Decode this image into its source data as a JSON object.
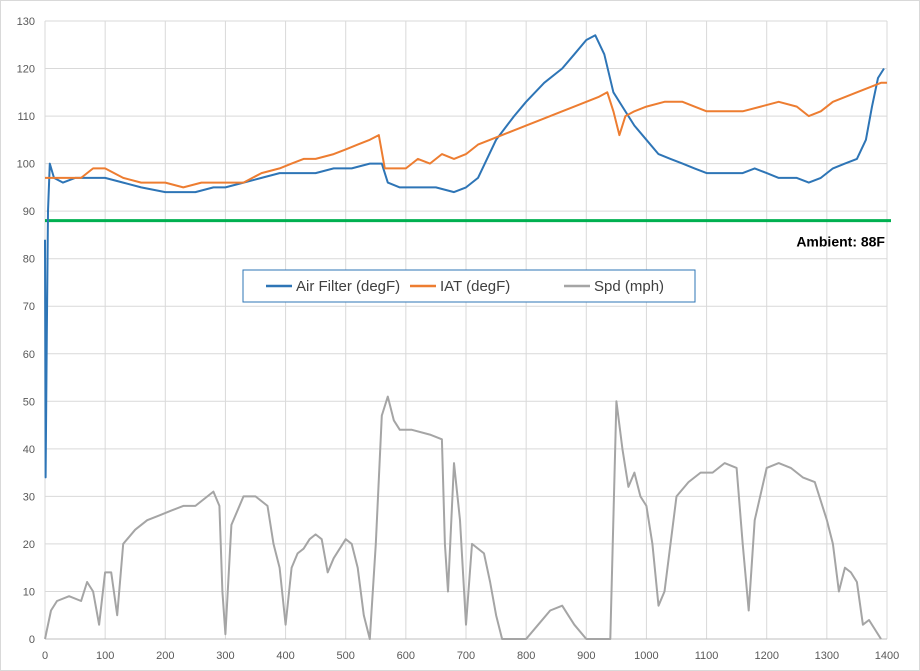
{
  "chart_data": {
    "type": "line",
    "title": "",
    "xlabel": "",
    "ylabel": "",
    "xlim": [
      0,
      1400
    ],
    "ylim": [
      0,
      130
    ],
    "x_ticks": [
      0,
      100,
      200,
      300,
      400,
      500,
      600,
      700,
      800,
      900,
      1000,
      1100,
      1200,
      1300,
      1400
    ],
    "y_ticks": [
      0,
      10,
      20,
      30,
      40,
      50,
      60,
      70,
      80,
      90,
      100,
      110,
      120,
      130
    ],
    "grid": true,
    "legend_position": "center",
    "reference_line": {
      "value": 88,
      "color": "#00b050",
      "label": "Ambient: 88F"
    },
    "series": [
      {
        "name": "Air Filter (degF)",
        "color": "#2e75b6",
        "points": [
          [
            0,
            84
          ],
          [
            1,
            34
          ],
          [
            3,
            64
          ],
          [
            5,
            90
          ],
          [
            8,
            100
          ],
          [
            15,
            97
          ],
          [
            30,
            96
          ],
          [
            50,
            97
          ],
          [
            80,
            97
          ],
          [
            100,
            97
          ],
          [
            130,
            96
          ],
          [
            160,
            95
          ],
          [
            200,
            94
          ],
          [
            250,
            94
          ],
          [
            280,
            95
          ],
          [
            300,
            95
          ],
          [
            330,
            96
          ],
          [
            360,
            97
          ],
          [
            390,
            98
          ],
          [
            420,
            98
          ],
          [
            450,
            98
          ],
          [
            480,
            99
          ],
          [
            510,
            99
          ],
          [
            540,
            100
          ],
          [
            560,
            100
          ],
          [
            570,
            96
          ],
          [
            590,
            95
          ],
          [
            620,
            95
          ],
          [
            650,
            95
          ],
          [
            680,
            94
          ],
          [
            700,
            95
          ],
          [
            720,
            97
          ],
          [
            750,
            105
          ],
          [
            780,
            110
          ],
          [
            800,
            113
          ],
          [
            830,
            117
          ],
          [
            860,
            120
          ],
          [
            880,
            123
          ],
          [
            900,
            126
          ],
          [
            915,
            127
          ],
          [
            930,
            123
          ],
          [
            945,
            115
          ],
          [
            960,
            112
          ],
          [
            980,
            108
          ],
          [
            1000,
            105
          ],
          [
            1020,
            102
          ],
          [
            1040,
            101
          ],
          [
            1060,
            100
          ],
          [
            1080,
            99
          ],
          [
            1100,
            98
          ],
          [
            1120,
            98
          ],
          [
            1140,
            98
          ],
          [
            1160,
            98
          ],
          [
            1180,
            99
          ],
          [
            1200,
            98
          ],
          [
            1220,
            97
          ],
          [
            1250,
            97
          ],
          [
            1270,
            96
          ],
          [
            1290,
            97
          ],
          [
            1310,
            99
          ],
          [
            1330,
            100
          ],
          [
            1350,
            101
          ],
          [
            1365,
            105
          ],
          [
            1375,
            112
          ],
          [
            1385,
            118
          ],
          [
            1395,
            120
          ]
        ]
      },
      {
        "name": "IAT (degF)",
        "color": "#ed7d31",
        "points": [
          [
            0,
            97
          ],
          [
            20,
            97
          ],
          [
            40,
            97
          ],
          [
            60,
            97
          ],
          [
            80,
            99
          ],
          [
            100,
            99
          ],
          [
            130,
            97
          ],
          [
            160,
            96
          ],
          [
            200,
            96
          ],
          [
            230,
            95
          ],
          [
            260,
            96
          ],
          [
            300,
            96
          ],
          [
            330,
            96
          ],
          [
            360,
            98
          ],
          [
            390,
            99
          ],
          [
            410,
            100
          ],
          [
            430,
            101
          ],
          [
            450,
            101
          ],
          [
            480,
            102
          ],
          [
            500,
            103
          ],
          [
            520,
            104
          ],
          [
            540,
            105
          ],
          [
            555,
            106
          ],
          [
            565,
            99
          ],
          [
            580,
            99
          ],
          [
            600,
            99
          ],
          [
            620,
            101
          ],
          [
            640,
            100
          ],
          [
            660,
            102
          ],
          [
            680,
            101
          ],
          [
            700,
            102
          ],
          [
            720,
            104
          ],
          [
            740,
            105
          ],
          [
            760,
            106
          ],
          [
            780,
            107
          ],
          [
            800,
            108
          ],
          [
            820,
            109
          ],
          [
            840,
            110
          ],
          [
            860,
            111
          ],
          [
            880,
            112
          ],
          [
            900,
            113
          ],
          [
            920,
            114
          ],
          [
            935,
            115
          ],
          [
            945,
            111
          ],
          [
            955,
            106
          ],
          [
            965,
            110
          ],
          [
            980,
            111
          ],
          [
            1000,
            112
          ],
          [
            1030,
            113
          ],
          [
            1060,
            113
          ],
          [
            1080,
            112
          ],
          [
            1100,
            111
          ],
          [
            1130,
            111
          ],
          [
            1160,
            111
          ],
          [
            1190,
            112
          ],
          [
            1220,
            113
          ],
          [
            1250,
            112
          ],
          [
            1270,
            110
          ],
          [
            1290,
            111
          ],
          [
            1310,
            113
          ],
          [
            1330,
            114
          ],
          [
            1350,
            115
          ],
          [
            1370,
            116
          ],
          [
            1390,
            117
          ],
          [
            1400,
            117
          ]
        ]
      },
      {
        "name": "Spd (mph)",
        "color": "#a5a5a5",
        "points": [
          [
            0,
            0
          ],
          [
            10,
            6
          ],
          [
            20,
            8
          ],
          [
            40,
            9
          ],
          [
            60,
            8
          ],
          [
            70,
            12
          ],
          [
            80,
            10
          ],
          [
            90,
            3
          ],
          [
            100,
            14
          ],
          [
            110,
            14
          ],
          [
            120,
            5
          ],
          [
            130,
            20
          ],
          [
            150,
            23
          ],
          [
            170,
            25
          ],
          [
            190,
            26
          ],
          [
            210,
            27
          ],
          [
            230,
            28
          ],
          [
            250,
            28
          ],
          [
            270,
            30
          ],
          [
            280,
            31
          ],
          [
            290,
            28
          ],
          [
            295,
            10
          ],
          [
            300,
            1
          ],
          [
            310,
            24
          ],
          [
            330,
            30
          ],
          [
            350,
            30
          ],
          [
            370,
            28
          ],
          [
            380,
            20
          ],
          [
            390,
            15
          ],
          [
            400,
            3
          ],
          [
            410,
            15
          ],
          [
            420,
            18
          ],
          [
            430,
            19
          ],
          [
            440,
            21
          ],
          [
            450,
            22
          ],
          [
            460,
            21
          ],
          [
            470,
            14
          ],
          [
            480,
            17
          ],
          [
            490,
            19
          ],
          [
            500,
            21
          ],
          [
            510,
            20
          ],
          [
            520,
            15
          ],
          [
            530,
            5
          ],
          [
            540,
            0
          ],
          [
            550,
            20
          ],
          [
            560,
            47
          ],
          [
            570,
            51
          ],
          [
            580,
            46
          ],
          [
            590,
            44
          ],
          [
            610,
            44
          ],
          [
            640,
            43
          ],
          [
            660,
            42
          ],
          [
            665,
            20
          ],
          [
            670,
            10
          ],
          [
            680,
            37
          ],
          [
            690,
            25
          ],
          [
            700,
            3
          ],
          [
            710,
            20
          ],
          [
            730,
            18
          ],
          [
            740,
            12
          ],
          [
            750,
            5
          ],
          [
            760,
            0
          ],
          [
            780,
            0
          ],
          [
            800,
            0
          ],
          [
            820,
            3
          ],
          [
            840,
            6
          ],
          [
            860,
            7
          ],
          [
            870,
            5
          ],
          [
            880,
            3
          ],
          [
            900,
            0
          ],
          [
            940,
            0
          ],
          [
            950,
            50
          ],
          [
            960,
            40
          ],
          [
            970,
            32
          ],
          [
            980,
            35
          ],
          [
            990,
            30
          ],
          [
            1000,
            28
          ],
          [
            1010,
            20
          ],
          [
            1020,
            7
          ],
          [
            1030,
            10
          ],
          [
            1050,
            30
          ],
          [
            1070,
            33
          ],
          [
            1090,
            35
          ],
          [
            1110,
            35
          ],
          [
            1130,
            37
          ],
          [
            1150,
            36
          ],
          [
            1160,
            20
          ],
          [
            1170,
            6
          ],
          [
            1180,
            25
          ],
          [
            1200,
            36
          ],
          [
            1220,
            37
          ],
          [
            1240,
            36
          ],
          [
            1260,
            34
          ],
          [
            1280,
            33
          ],
          [
            1300,
            25
          ],
          [
            1310,
            20
          ],
          [
            1320,
            10
          ],
          [
            1330,
            15
          ],
          [
            1340,
            14
          ],
          [
            1350,
            12
          ],
          [
            1360,
            3
          ],
          [
            1370,
            4
          ],
          [
            1380,
            2
          ],
          [
            1390,
            0
          ]
        ]
      }
    ]
  }
}
